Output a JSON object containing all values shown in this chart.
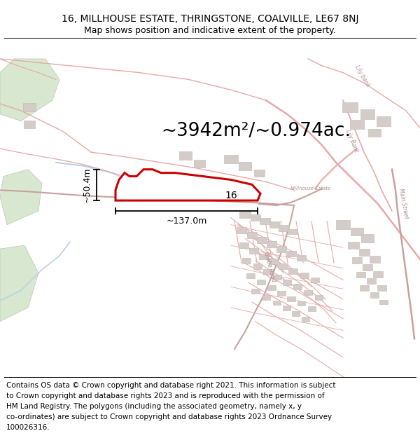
{
  "title_line1": "16, MILLHOUSE ESTATE, THRINGSTONE, COALVILLE, LE67 8NJ",
  "title_line2": "Map shows position and indicative extent of the property.",
  "area_text": "~3942m²/~0.974ac.",
  "width_text": "~137.0m",
  "height_text": "~50.4m",
  "label_16": "16",
  "footer_lines": [
    "Contains OS data © Crown copyright and database right 2021. This information is subject",
    "to Crown copyright and database rights 2023 and is reproduced with the permission of",
    "HM Land Registry. The polygons (including the associated geometry, namely x, y",
    "co-ordinates) are subject to Crown copyright and database rights 2023 Ordnance Survey",
    "100026316."
  ],
  "bg_color": "#ffffff",
  "road_color": "#e8a8a8",
  "road_color2": "#c8a0a0",
  "property_color": "#cc0000",
  "green_color": "#d8e8d0",
  "building_color": "#d4ccc8",
  "building_edge": "#c0b8b4",
  "blue_color": "#b8d0e8",
  "gray_road": "#c8c0c0",
  "title_fontsize": 10,
  "subtitle_fontsize": 9,
  "area_fontsize": 19,
  "dim_label_fontsize": 9,
  "footer_fontsize": 7.5,
  "map_label_fontsize": 5.5,
  "xlim": [
    0,
    600
  ],
  "ylim": [
    0,
    490
  ]
}
